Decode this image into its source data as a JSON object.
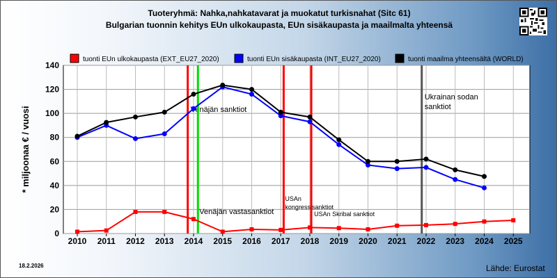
{
  "header": {
    "title_line1": "Tuoteryhmä: Nahka,nahkatavarat ja muokatut turkisnahat (Sitc 61)",
    "title_line2": "Bulgarian tuonnin kehitys EUn ulkokaupasta, EUn sisäkaupasta ja maailmalta yhteensä"
  },
  "footer": {
    "date": "18.2.2026",
    "source": "Lähde: Eurostat"
  },
  "chart_data": {
    "type": "line",
    "ylabel": "* miljoonaa € / vuosi",
    "xlabel": "",
    "ylim": [
      0,
      140
    ],
    "yticks": [
      0,
      20,
      40,
      60,
      80,
      100,
      120,
      140
    ],
    "categories": [
      "2010",
      "2011",
      "2012",
      "2013",
      "2014",
      "2015",
      "2016",
      "2017",
      "2018",
      "2019",
      "2020",
      "2021",
      "2022",
      "2023",
      "2024",
      "2025"
    ],
    "grid": true,
    "legend_placement": "top",
    "series": [
      {
        "name": "tuonti EUn ulkokaupasta (EXT_EU27_2020)",
        "color": "#ff0000",
        "marker": "square",
        "values": [
          1.5,
          2.5,
          18,
          18,
          12,
          1.5,
          3.5,
          3,
          5,
          4.5,
          3.5,
          6.5,
          7,
          8,
          10,
          11
        ]
      },
      {
        "name": "tuonti EUn sisäkaupasta (INT_EU27_2020)",
        "color": "#0000ff",
        "marker": "circle",
        "values": [
          80,
          90,
          79,
          83,
          104,
          122,
          116,
          98,
          93,
          74,
          57,
          54,
          55,
          45,
          38,
          null
        ]
      },
      {
        "name": "tuonti maailma yhteensältä (WORLD)",
        "color": "#000000",
        "marker": "circle",
        "values": [
          81,
          92.5,
          97,
          101,
          116,
          123.5,
          120,
          101,
          97,
          78,
          60,
          60,
          62,
          53,
          47.5,
          null
        ]
      }
    ],
    "events": [
      {
        "x": 2013.8,
        "color": "#ff0000",
        "label": "Venäjän sanktiot"
      },
      {
        "x": 2014.15,
        "color": "#00dd00",
        "label": "Venäjän vastasanktiot"
      },
      {
        "x": 2017.1,
        "color": "#ff0000",
        "label": "USAn kongressisanktiot"
      },
      {
        "x": 2018.05,
        "color": "#ff0000",
        "label": "USAn Skribal sanktiot"
      },
      {
        "x": 2021.85,
        "color": "#555555",
        "label": "Ukrainan sodan sanktiot"
      }
    ]
  }
}
